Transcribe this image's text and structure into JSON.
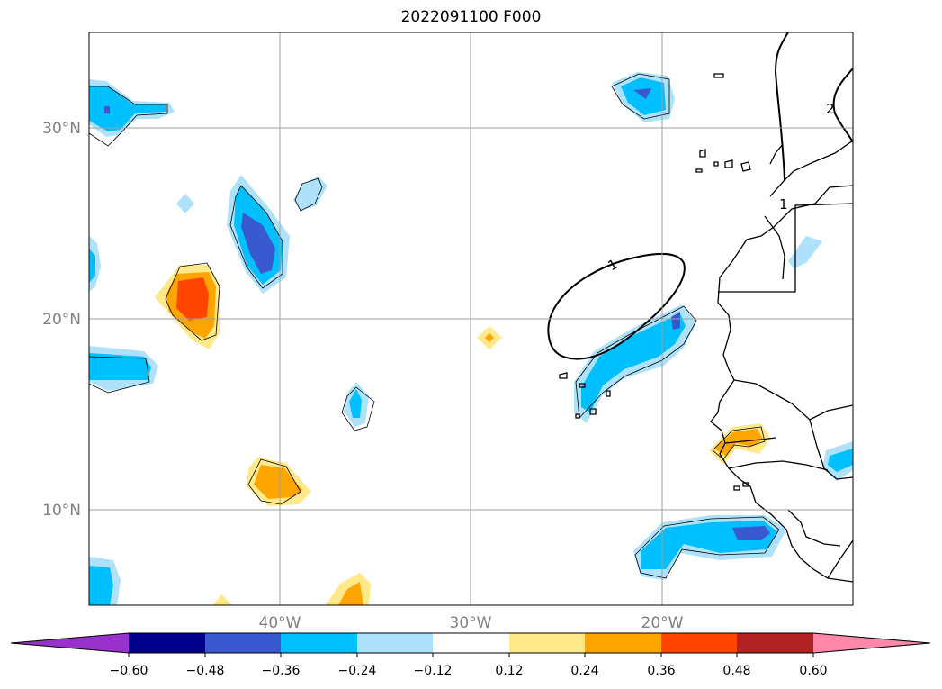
{
  "title": "2022091100 F000",
  "map": {
    "lat_labels": [
      "30°N",
      "20°N",
      "10°N"
    ],
    "lon_labels": [
      "40°W",
      "30°W",
      "20°W"
    ],
    "contour_labels": [
      "1",
      "1",
      "2"
    ],
    "colors": {
      "grid": "#a0a0a0",
      "tick_label": "#808080",
      "coast": "#000000"
    }
  },
  "colorbar": {
    "tick_labels": [
      "−0.60",
      "−0.48",
      "−0.36",
      "−0.24",
      "−0.12",
      "0.12",
      "0.24",
      "0.36",
      "0.48",
      "0.60"
    ],
    "colors": [
      "#9932cc",
      "#00008b",
      "#3a58cf",
      "#00bfff",
      "#aee2fa",
      "#ffffff",
      "#ffe98a",
      "#ffa500",
      "#ff4500",
      "#b22222",
      "#ff88aa"
    ]
  }
}
